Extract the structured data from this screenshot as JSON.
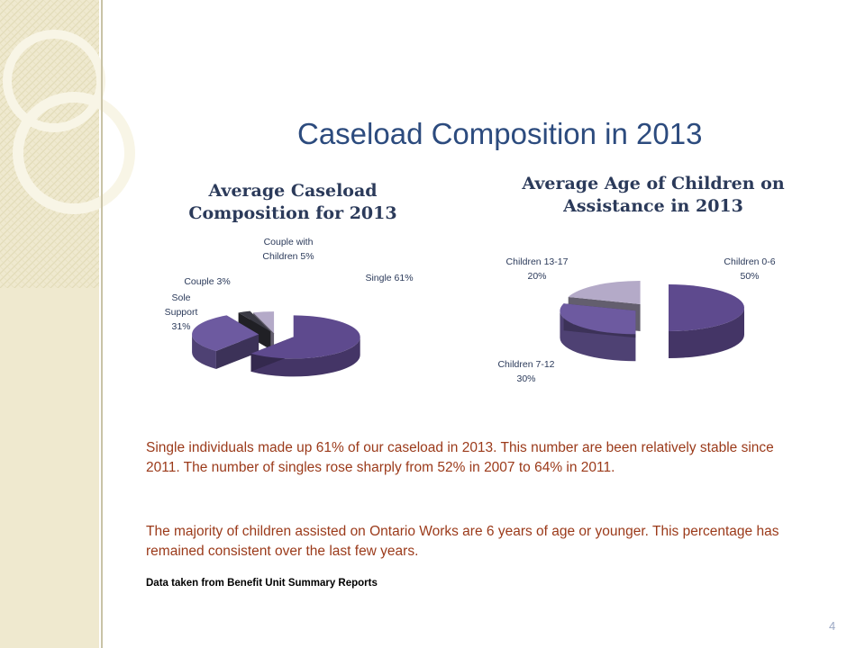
{
  "slide": {
    "title": "Caseload Composition in 2013",
    "page_number": "4",
    "paragraph_1": "Single individuals made up 61% of our caseload in 2013. This number are been relatively stable since 2011. The number of singles rose sharply from 52% in  2007 to 64% in 2011.",
    "paragraph_2": "The majority of children assisted on Ontario Works are 6 years of age or younger. This percentage has remained consistent over the last few years.",
    "source_note": "Data taken from Benefit Unit Summary Reports"
  },
  "chart_data": [
    {
      "type": "pie",
      "title": "Average Caseload Composition for 2013",
      "categories": [
        "Single",
        "Sole Support",
        "Couple",
        "Couple with Children"
      ],
      "values": [
        61,
        31,
        3,
        5
      ],
      "data_labels": [
        "Single 61%",
        "Sole Support 31%",
        "Couple 3%",
        "Couple with Children 5%"
      ],
      "exploded": true,
      "style": "3d",
      "colors": [
        "#5e4a8e",
        "#6d5aa0",
        "#3a3a44",
        "#b4aac8"
      ]
    },
    {
      "type": "pie",
      "title": "Average Age of Children on Assistance in 2013",
      "categories": [
        "Children 0-6",
        "Children 7-12",
        "Children 13-17"
      ],
      "values": [
        50,
        30,
        20
      ],
      "data_labels": [
        "Children 0-6 50%",
        "Children 7-12 30%",
        "Children 13-17 20%"
      ],
      "exploded": true,
      "style": "3d",
      "colors": [
        "#5e4a8e",
        "#6d5aa0",
        "#b4aac8"
      ]
    }
  ],
  "decor": {
    "sidebar_color": "#efe9cf",
    "pattern_color": "#e2dbb8"
  }
}
